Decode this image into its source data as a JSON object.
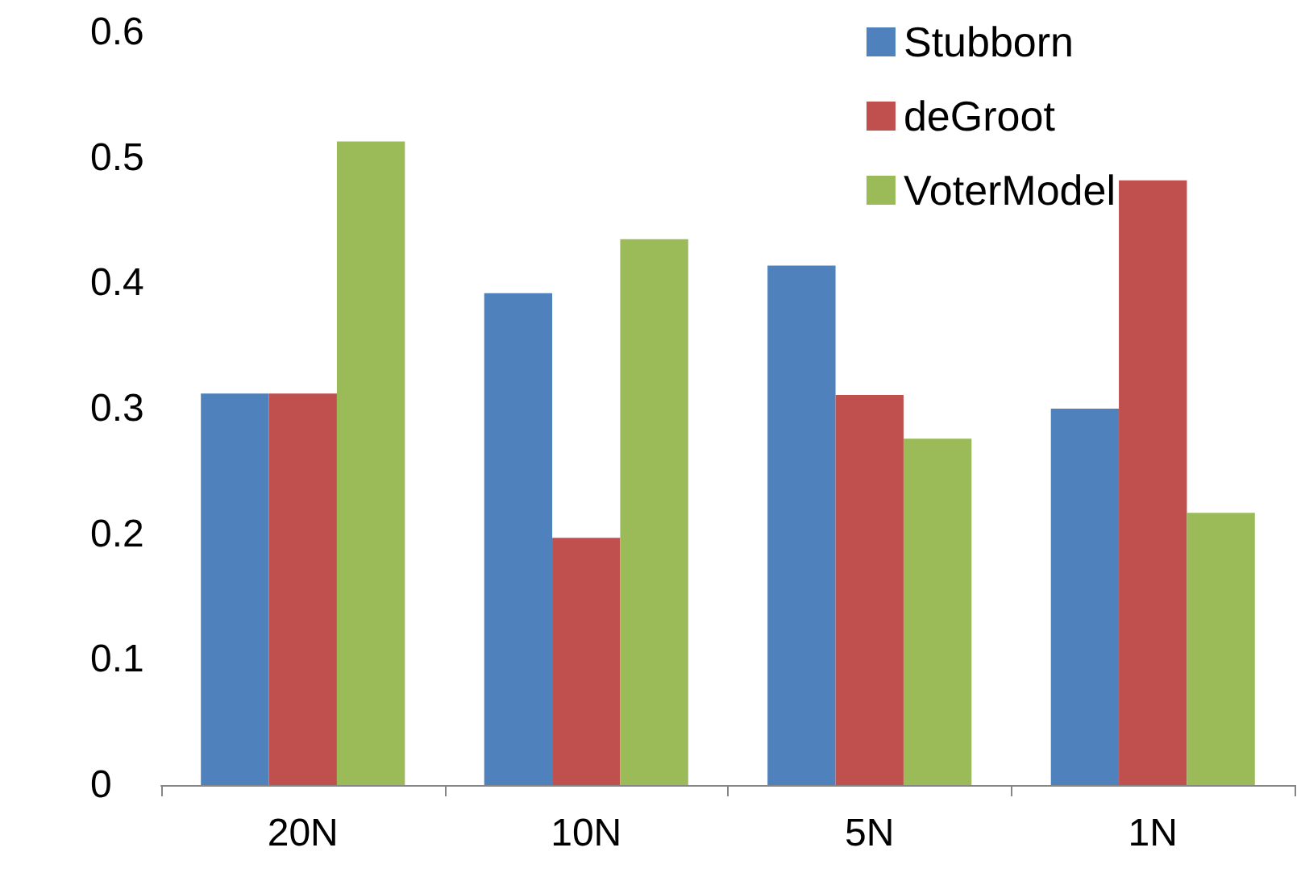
{
  "chart_data": {
    "type": "bar",
    "categories": [
      "20N",
      "10N",
      "5N",
      "1N"
    ],
    "series": [
      {
        "name": "Stubborn",
        "color": "#4f81bd",
        "values": [
          0.312,
          0.392,
          0.414,
          0.3
        ]
      },
      {
        "name": "deGroot",
        "color": "#c0504d",
        "values": [
          0.312,
          0.197,
          0.311,
          0.482
        ]
      },
      {
        "name": "VoterModel",
        "color": "#9bbb59",
        "values": [
          0.513,
          0.435,
          0.276,
          0.217
        ]
      }
    ],
    "ylim": [
      0,
      0.6
    ],
    "yticks": [
      0,
      0.1,
      0.2,
      0.3,
      0.4,
      0.5,
      0.6
    ],
    "grid": false,
    "legend": "top right"
  }
}
